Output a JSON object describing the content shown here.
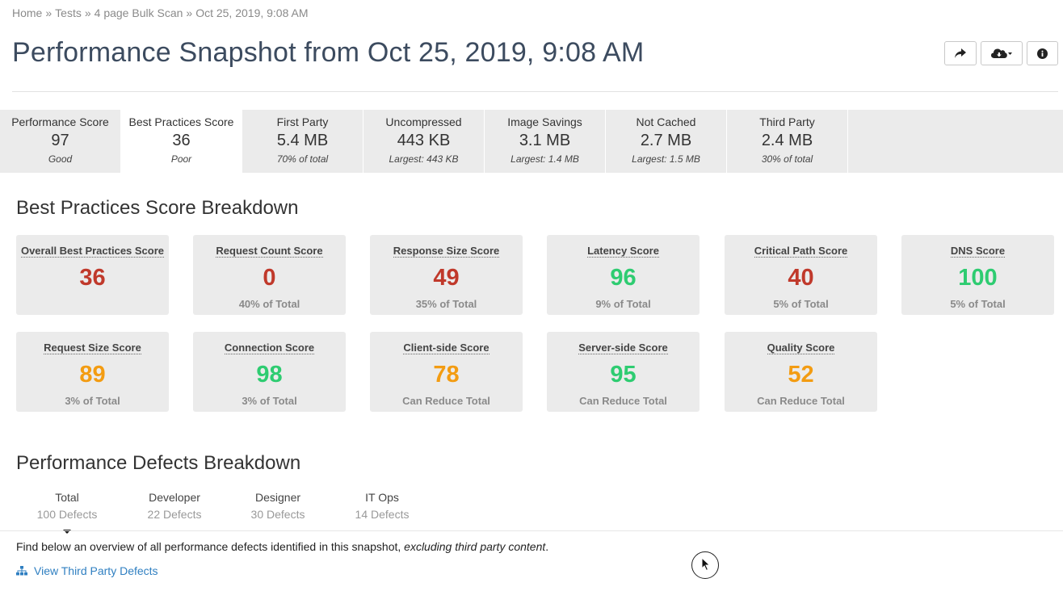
{
  "breadcrumb": {
    "items": [
      "Home",
      "Tests",
      "4 page Bulk Scan",
      "Oct 25, 2019, 9:08 AM"
    ],
    "separator": "»"
  },
  "header": {
    "title": "Performance Snapshot from Oct 25, 2019, 9:08 AM",
    "buttons": [
      "share-icon",
      "cloud-download-icon",
      "info-icon"
    ]
  },
  "metrics": [
    {
      "label": "Performance Score",
      "value": "97",
      "sub": "Good"
    },
    {
      "label": "Best Practices Score",
      "value": "36",
      "sub": "Poor"
    },
    {
      "label": "First Party",
      "value": "5.4 MB",
      "sub": "70% of total"
    },
    {
      "label": "Uncompressed",
      "value": "443 KB",
      "sub": "Largest: 443 KB"
    },
    {
      "label": "Image Savings",
      "value": "3.1 MB",
      "sub": "Largest: 1.4 MB"
    },
    {
      "label": "Not Cached",
      "value": "2.7 MB",
      "sub": "Largest: 1.5 MB"
    },
    {
      "label": "Third Party",
      "value": "2.4 MB",
      "sub": "30% of total"
    }
  ],
  "active_metric": "Best Practices Score",
  "best_practices": {
    "title": "Best Practices Score Breakdown",
    "cards": [
      {
        "label": "Overall Best Practices Score",
        "value": "36",
        "sub": "",
        "color": "#c0392b"
      },
      {
        "label": "Request Count Score",
        "value": "0",
        "sub": "40% of Total",
        "color": "#c0392b"
      },
      {
        "label": "Response Size Score",
        "value": "49",
        "sub": "35% of Total",
        "color": "#c0392b"
      },
      {
        "label": "Latency Score",
        "value": "96",
        "sub": "9% of Total",
        "color": "#2ecc71"
      },
      {
        "label": "Critical Path Score",
        "value": "40",
        "sub": "5% of Total",
        "color": "#c0392b"
      },
      {
        "label": "DNS Score",
        "value": "100",
        "sub": "5% of Total",
        "color": "#2ecc71"
      },
      {
        "label": "Request Size Score",
        "value": "89",
        "sub": "3% of Total",
        "color": "#f39c12"
      },
      {
        "label": "Connection Score",
        "value": "98",
        "sub": "3% of Total",
        "color": "#2ecc71"
      },
      {
        "label": "Client-side Score",
        "value": "78",
        "sub": "Can Reduce Total",
        "color": "#f39c12"
      },
      {
        "label": "Server-side Score",
        "value": "95",
        "sub": "Can Reduce Total",
        "color": "#2ecc71"
      },
      {
        "label": "Quality Score",
        "value": "52",
        "sub": "Can Reduce Total",
        "color": "#f39c12"
      }
    ]
  },
  "defects": {
    "title": "Performance Defects Breakdown",
    "tabs": [
      {
        "label": "Total",
        "count": "100 Defects"
      },
      {
        "label": "Developer",
        "count": "22 Defects"
      },
      {
        "label": "Designer",
        "count": "30 Defects"
      },
      {
        "label": "IT Ops",
        "count": "14 Defects"
      }
    ],
    "active_tab": "Total",
    "overview_text": "Find below an overview of all performance defects identified in this snapshot, ",
    "overview_emphasis": "excluding third party content",
    "overview_end": ".",
    "third_party_link": "View Third Party Defects"
  },
  "colors": {
    "poor": "#c0392b",
    "good": "#2ecc71",
    "average": "#f39c12",
    "link": "#2f7fc1",
    "title": "#3c4b5f"
  }
}
